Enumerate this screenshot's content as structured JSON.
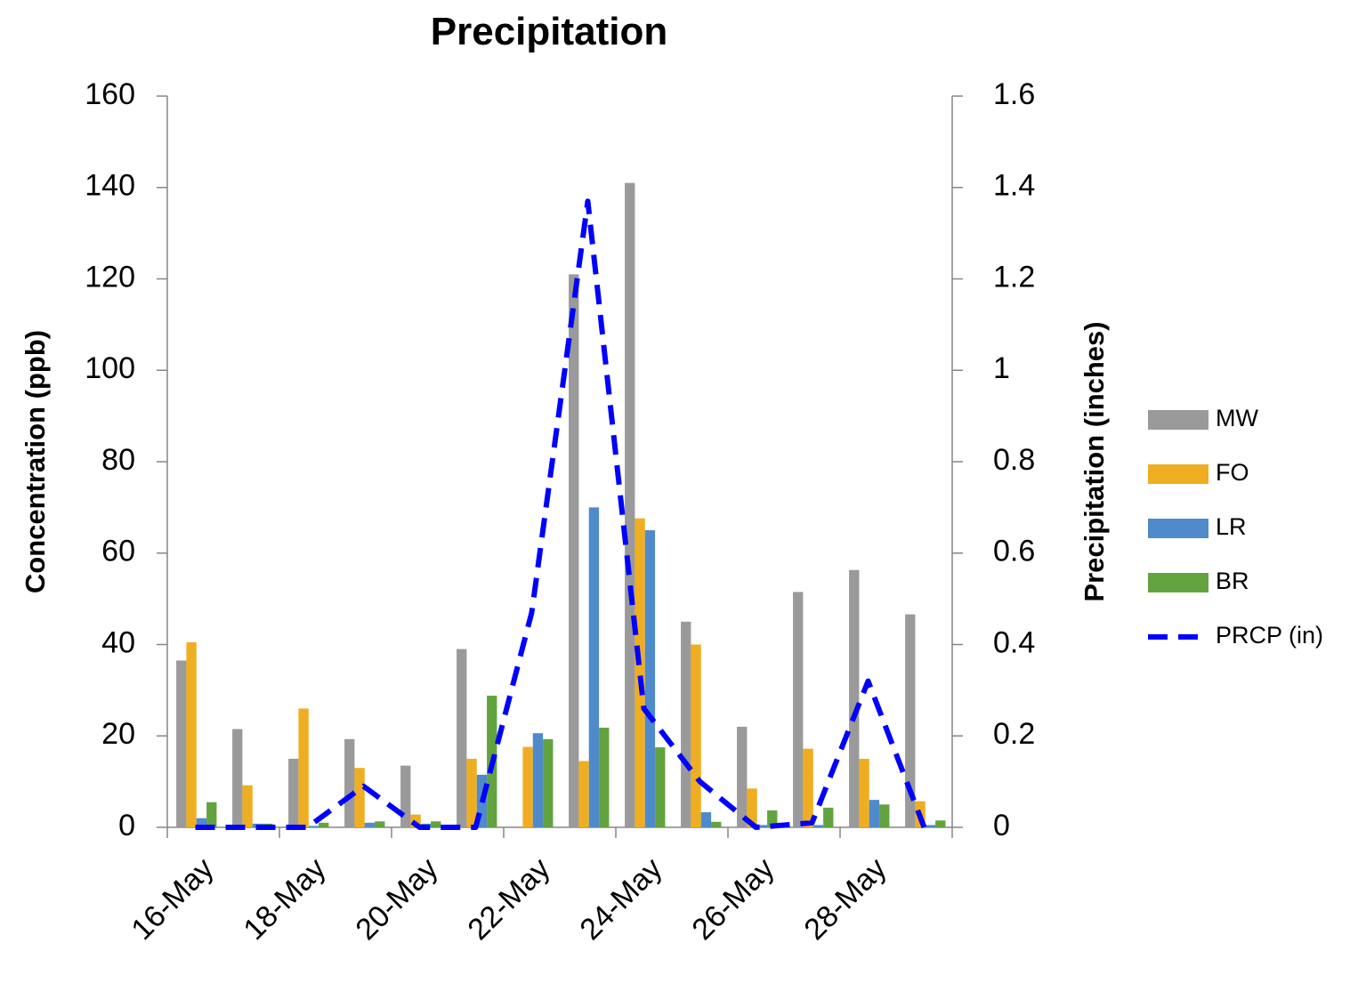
{
  "chart_data": {
    "type": "bar",
    "title": "Precipitation",
    "y_label": "Concentration (ppb)",
    "y2_label": "Precipitation (inches)",
    "categories": [
      "16-May",
      null,
      "18-May",
      null,
      "20-May",
      null,
      "22-May",
      null,
      "24-May",
      null,
      "26-May",
      null,
      "28-May",
      null
    ],
    "series": [
      {
        "name": "MW",
        "color": "#9a9a9a",
        "values": [
          36.5,
          21.5,
          15,
          19.3,
          13.5,
          39,
          null,
          121,
          141,
          45,
          22,
          51.5,
          56.3,
          46.6
        ]
      },
      {
        "name": "FO",
        "color": "#efae22",
        "values": [
          40.5,
          9.2,
          26,
          13,
          2.8,
          15,
          17.6,
          14.5,
          67.6,
          40,
          8.5,
          17.2,
          15,
          5.7
        ]
      },
      {
        "name": "LR",
        "color": "#4f8acb",
        "values": [
          2,
          0.8,
          0.3,
          1,
          0.8,
          11.5,
          20.6,
          70,
          65,
          3.3,
          0.5,
          0.5,
          6,
          0.5
        ]
      },
      {
        "name": "BR",
        "color": "#62a33f",
        "values": [
          5.5,
          0.8,
          1,
          1.3,
          1.3,
          28.8,
          19.3,
          21.8,
          17.5,
          1.2,
          3.7,
          4.3,
          5,
          1.5
        ]
      },
      {
        "name": "PRCP (in)",
        "color": "#0000ff",
        "type": "line",
        "dashed": true,
        "axis": "y2",
        "values": [
          0,
          0,
          0,
          0.09,
          0,
          0,
          0.47,
          1.37,
          0.26,
          0.1,
          0,
          0.01,
          0.32,
          0
        ]
      }
    ],
    "ylim": [
      0,
      160
    ],
    "yticks": [
      0,
      20,
      40,
      60,
      80,
      100,
      120,
      140,
      160
    ],
    "y2lim": [
      0,
      1.6
    ],
    "y2ticks": [
      0,
      0.2,
      0.4,
      0.6,
      0.8,
      1,
      1.2,
      1.4,
      1.6
    ],
    "legend": "right"
  }
}
